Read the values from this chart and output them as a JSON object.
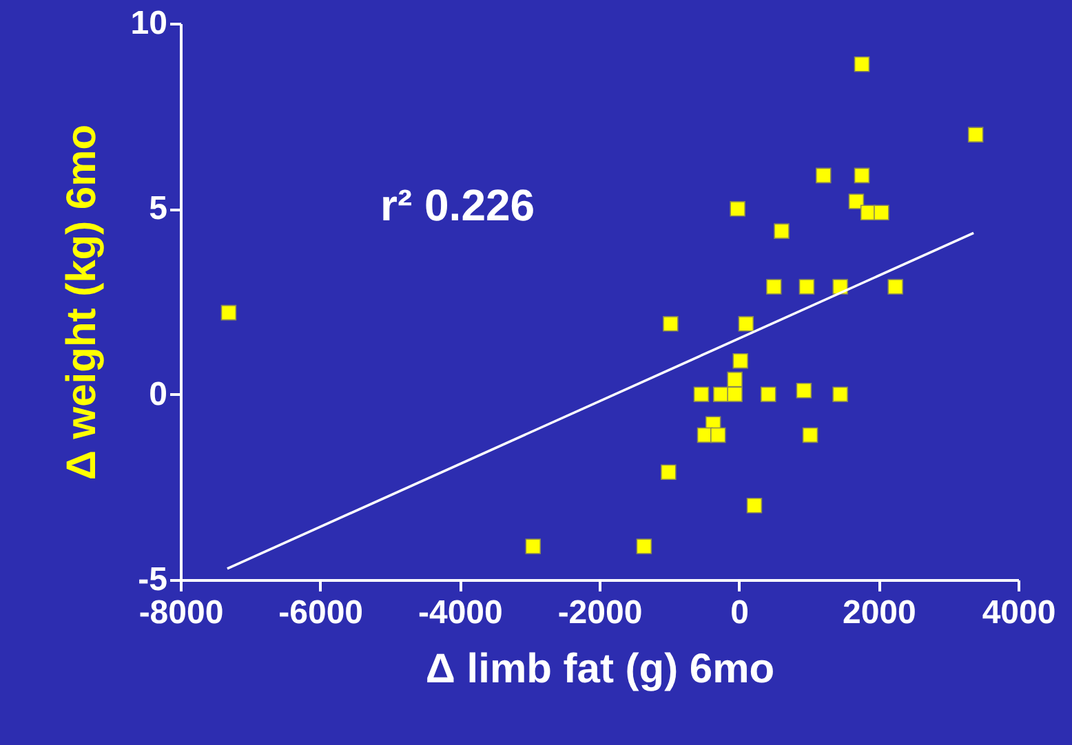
{
  "chart_data": {
    "type": "scatter",
    "xlabel": "Δ limb fat (g) 6mo",
    "ylabel": "Δ weight (kg) 6mo",
    "annotations": [
      "r² 0.226"
    ],
    "xlim": [
      -8000,
      4000
    ],
    "ylim": [
      -5,
      10
    ],
    "xticks": [
      -8000,
      -6000,
      -4000,
      -2000,
      0,
      2000,
      4000
    ],
    "yticks": [
      -5,
      0,
      5,
      10
    ],
    "grid": false,
    "series": [
      {
        "marker": "square",
        "color": "#ffff00",
        "x": [
          1760,
          3390,
          1210,
          1760,
          -20,
          1680,
          1850,
          2040,
          610,
          500,
          970,
          1450,
          2240,
          -980,
          100,
          20,
          -60,
          -540,
          -260,
          -60,
          420,
          930,
          1450,
          -370,
          -490,
          -300,
          1020,
          -1010,
          220,
          -1360,
          -2950,
          -7310
        ],
        "values": [
          8.9,
          7.0,
          5.9,
          5.9,
          5.0,
          5.2,
          4.9,
          4.9,
          4.4,
          2.9,
          2.9,
          2.9,
          2.9,
          1.9,
          1.9,
          0.9,
          0.4,
          0,
          0,
          0,
          0,
          0.1,
          0,
          -0.8,
          -1.1,
          -1.1,
          -1.1,
          -2.1,
          -3.0,
          -4.1,
          -4.1,
          2.2
        ]
      },
      {
        "type": "line",
        "color": "#ffffff",
        "line_style": "solid",
        "marker": "none",
        "x": [
          -7330,
          3360
        ],
        "values": [
          -4.7,
          4.35
        ]
      }
    ]
  }
}
